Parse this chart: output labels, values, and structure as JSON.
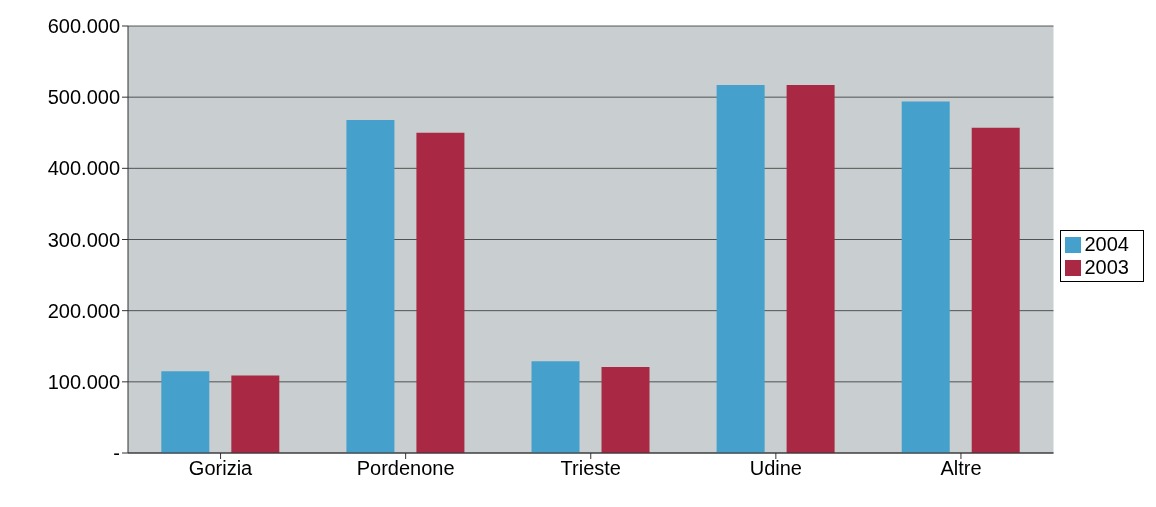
{
  "chart_data": {
    "type": "bar",
    "categories": [
      "Gorizia",
      "Pordenone",
      "Trieste",
      "Udine",
      "Altre"
    ],
    "series": [
      {
        "name": "2004",
        "color": "#45a0cc",
        "values": [
          115000,
          468000,
          129000,
          517000,
          494000
        ]
      },
      {
        "name": "2003",
        "color": "#a92945",
        "values": [
          109000,
          450000,
          121000,
          517000,
          457000
        ]
      }
    ],
    "ylim": [
      0,
      600000
    ],
    "yticks": [
      {
        "value": 0,
        "label": "-"
      },
      {
        "value": 100000,
        "label": "100.000"
      },
      {
        "value": 200000,
        "label": "200.000"
      },
      {
        "value": 300000,
        "label": "300.000"
      },
      {
        "value": 400000,
        "label": "400.000"
      },
      {
        "value": 500000,
        "label": "500.000"
      },
      {
        "value": 600000,
        "label": "600.000"
      }
    ],
    "grid": "y",
    "legend": "right"
  }
}
